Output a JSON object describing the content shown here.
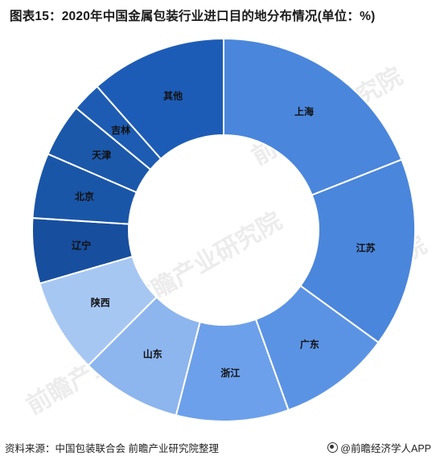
{
  "title": "图表15：2020年中国金属包装行业进口目的地分布情况(单位：%)",
  "chart_data": {
    "type": "pie",
    "title": "图表15：2020年中国金属包装行业进口目的地分布情况(单位：%)",
    "categories": [
      "上海",
      "江苏",
      "广东",
      "浙江",
      "山东",
      "陕西",
      "辽宁",
      "北京",
      "天津",
      "吉林",
      "其他"
    ],
    "values": [
      19,
      16,
      9.5,
      9.5,
      8.5,
      8,
      5.5,
      5.5,
      4.5,
      2.5,
      11.5
    ],
    "colors": [
      "#4a86db",
      "#4a86db",
      "#5b93e4",
      "#6ca0ea",
      "#8db5ee",
      "#a7c7f3",
      "#174e9e",
      "#1a56a8",
      "#1b58aa",
      "#1d5cb2",
      "#1d5cb6"
    ]
  },
  "footer": {
    "source": "资料来源：中国包装联合会 前瞻产业研究院整理",
    "brand": "@前瞻经济学人APP"
  },
  "watermark": "前瞻产业研究院"
}
